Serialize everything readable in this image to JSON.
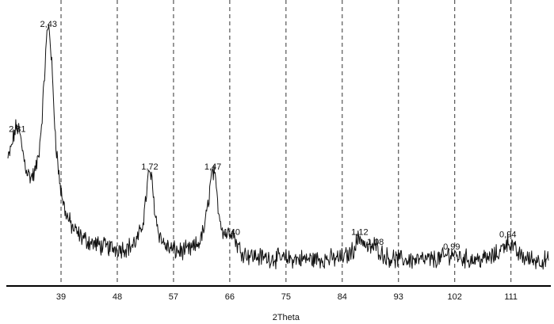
{
  "chart_data": {
    "type": "line",
    "title": "",
    "xlabel": "2Theta",
    "ylabel": "",
    "xlim": [
      30.5,
      117
    ],
    "ylim": [
      0,
      100
    ],
    "xticks": [
      39,
      48,
      57,
      66,
      75,
      84,
      93,
      102,
      111
    ],
    "x_tick_labels": [
      "39",
      "48",
      "57",
      "66",
      "75",
      "84",
      "93",
      "102",
      "111"
    ],
    "grid": "vertical-dashed",
    "y_axis_shown": false,
    "peaks": [
      {
        "label": "2,81",
        "x": 32.0,
        "height": 58
      },
      {
        "label": "2,43",
        "x": 37.0,
        "height": 100
      },
      {
        "label": "1,72",
        "x": 53.2,
        "height": 43
      },
      {
        "label": "1,47",
        "x": 63.3,
        "height": 43
      },
      {
        "label": "1,40",
        "x": 66.3,
        "height": 17
      },
      {
        "label": "1,12",
        "x": 86.8,
        "height": 17
      },
      {
        "label": "1,08",
        "x": 89.3,
        "height": 13
      },
      {
        "label": "0,99",
        "x": 101.5,
        "height": 11
      },
      {
        "label": "0,94",
        "x": 110.5,
        "height": 16
      }
    ]
  }
}
